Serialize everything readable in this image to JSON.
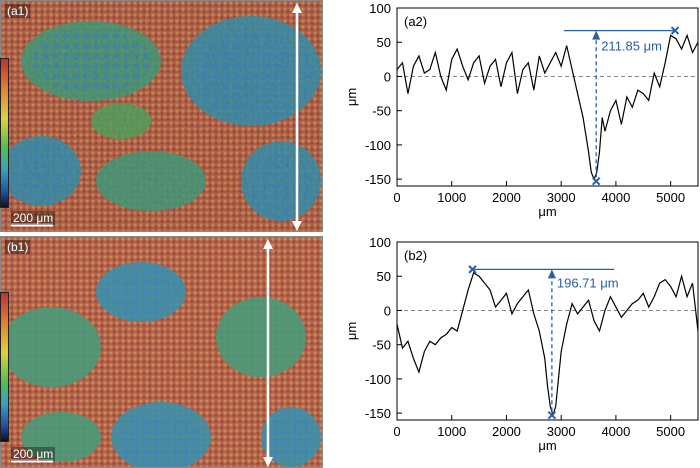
{
  "panels": {
    "a1": {
      "label": "(a1)",
      "scalebar": "200 μm"
    },
    "b1": {
      "label": "(b1)",
      "scalebar": "200 μm"
    }
  },
  "chart_data": [
    {
      "type": "line",
      "panel_label": "(a2)",
      "xlabel": "μm",
      "ylabel": "μm",
      "xlim": [
        0,
        5500
      ],
      "ylim": [
        -160,
        100
      ],
      "xticks": [
        0,
        1000,
        2000,
        3000,
        4000,
        5000
      ],
      "yticks": [
        100,
        50,
        0,
        -50,
        -100,
        -150
      ],
      "grid": false,
      "zero_line": "dashed",
      "series": [
        {
          "x": [
            0,
            100,
            200,
            300,
            400,
            500,
            600,
            700,
            800,
            900,
            1000,
            1100,
            1200,
            1300,
            1400,
            1500,
            1600,
            1700,
            1800,
            1900,
            2000,
            2100,
            2200,
            2300,
            2400,
            2500,
            2600,
            2700,
            2800,
            2900,
            3000,
            3100,
            3200,
            3300,
            3400,
            3500,
            3550,
            3600,
            3650,
            3700,
            3750,
            3800,
            3900,
            4000,
            4100,
            4200,
            4300,
            4400,
            4500,
            4600,
            4700,
            4800,
            4900,
            5000,
            5100,
            5200,
            5300,
            5400,
            5500
          ],
          "y": [
            10,
            20,
            -25,
            15,
            30,
            5,
            10,
            35,
            0,
            -20,
            25,
            40,
            15,
            -5,
            20,
            30,
            -10,
            15,
            25,
            -15,
            20,
            35,
            -25,
            10,
            20,
            -20,
            30,
            5,
            20,
            35,
            15,
            45,
            10,
            -25,
            -60,
            -110,
            -140,
            -150,
            -140,
            -110,
            -60,
            -80,
            -50,
            -35,
            -70,
            -30,
            -45,
            -20,
            -25,
            -35,
            5,
            -15,
            20,
            60,
            55,
            40,
            60,
            35,
            50
          ]
        }
      ],
      "annotation": {
        "text": "211.85 μm",
        "peak": {
          "x": 5080,
          "y": 67
        },
        "valley": {
          "x": 3640,
          "y": -153
        },
        "line_start_x": 3050
      }
    },
    {
      "type": "line",
      "panel_label": "(b2)",
      "xlabel": "μm",
      "ylabel": "μm",
      "xlim": [
        0,
        5500
      ],
      "ylim": [
        -160,
        100
      ],
      "xticks": [
        0,
        1000,
        2000,
        3000,
        4000,
        5000
      ],
      "yticks": [
        100,
        50,
        0,
        -50,
        -100,
        -150
      ],
      "grid": false,
      "zero_line": "dashed",
      "series": [
        {
          "x": [
            0,
            100,
            200,
            300,
            400,
            500,
            600,
            700,
            800,
            900,
            1000,
            1100,
            1200,
            1300,
            1400,
            1500,
            1600,
            1700,
            1800,
            1900,
            2000,
            2100,
            2200,
            2300,
            2400,
            2500,
            2600,
            2700,
            2750,
            2800,
            2850,
            2900,
            2950,
            3000,
            3100,
            3200,
            3300,
            3400,
            3500,
            3600,
            3700,
            3800,
            3900,
            4000,
            4100,
            4200,
            4300,
            4400,
            4500,
            4600,
            4700,
            4800,
            4900,
            5000,
            5100,
            5200,
            5300,
            5400,
            5500
          ],
          "y": [
            -20,
            -55,
            -45,
            -70,
            -90,
            -60,
            -45,
            -50,
            -40,
            -35,
            -25,
            -30,
            0,
            30,
            55,
            50,
            40,
            30,
            5,
            15,
            25,
            -5,
            10,
            20,
            30,
            -5,
            -30,
            -70,
            -110,
            -140,
            -153,
            -140,
            -100,
            -60,
            -20,
            10,
            -5,
            5,
            15,
            -15,
            -30,
            0,
            20,
            5,
            -10,
            0,
            10,
            15,
            25,
            5,
            20,
            40,
            45,
            35,
            20,
            50,
            20,
            40,
            -30
          ]
        }
      ],
      "annotation": {
        "text": "196.71 μm",
        "peak": {
          "x": 1380,
          "y": 60
        },
        "valley": {
          "x": 2830,
          "y": -153
        },
        "line_end_x": 3970
      }
    }
  ]
}
